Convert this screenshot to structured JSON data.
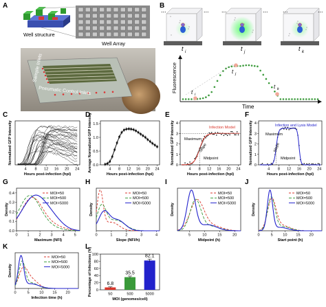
{
  "panel_letters": {
    "A": "A",
    "B": "B",
    "C": "C",
    "D": "D",
    "E": "E",
    "F": "F",
    "G": "G",
    "H": "H",
    "I": "I",
    "J": "J",
    "K": "K",
    "L": "L"
  },
  "panelA": {
    "well_structure": "Well structure",
    "well_array": "Well Array",
    "sample_inlets": "Sample Inlets",
    "pneumatic": "Pneumatic Control Inlets"
  },
  "panelB": {
    "ellipsis": "...",
    "t_i": "t",
    "t_j": "t",
    "t_k": "t",
    "sub_i": "i",
    "sub_j": "j",
    "sub_k": "k",
    "ylabel": "Fluorescence",
    "xlabel": "Time"
  },
  "colors": {
    "red": "#d9362b",
    "green": "#3a9a3a",
    "blue": "#2222cc",
    "black": "#111111",
    "gfp": "#2ecc40"
  },
  "chart_data": [
    {
      "panel": "C",
      "type": "line",
      "xlabel": "Hours post-infection (hpi)",
      "ylabel": "Normalized GFP Intensity",
      "x_ticks": [
        "4",
        "8",
        "12",
        "16",
        "20",
        "24"
      ]
    },
    {
      "panel": "D",
      "type": "line",
      "xlabel": "Hours post-infection (hpi)",
      "ylabel": "Average Normalized GFP Intensity",
      "x_ticks": [
        "4",
        "8",
        "12",
        "16",
        "20",
        "24"
      ],
      "y_ticks": [
        "0.0",
        "0.5",
        "1.0",
        "1.5"
      ],
      "x": [
        2,
        3,
        4,
        5,
        6,
        7,
        8,
        9,
        10,
        11,
        12,
        13,
        14,
        15,
        16,
        17,
        18,
        19,
        20,
        21,
        22,
        23,
        24
      ],
      "y": [
        0.02,
        0.05,
        0.12,
        0.3,
        0.55,
        0.8,
        1.02,
        1.18,
        1.27,
        1.3,
        1.31,
        1.3,
        1.28,
        1.24,
        1.18,
        1.12,
        1.06,
        1.0,
        0.92,
        0.85,
        0.78,
        0.72,
        0.66
      ]
    },
    {
      "panel": "E",
      "type": "line",
      "xlabel": "Hours post-infection (hpi)",
      "ylabel": "Normalized GFP Intensity",
      "x_ticks": [
        "4",
        "8",
        "12",
        "16",
        "20",
        "24"
      ],
      "y_ticks": [
        "0",
        "1",
        "2",
        "3",
        "4"
      ],
      "model_label": "Infection Model",
      "maximum_label": "Maximum",
      "slope_label": "Slope",
      "midpoint_label": "Midpoint"
    },
    {
      "panel": "F",
      "type": "line",
      "xlabel": "Hours post-infection (hpi)",
      "ylabel": "Normalized GFP Intensity",
      "x_ticks": [
        "4",
        "8",
        "12",
        "16",
        "20",
        "24"
      ],
      "y_ticks": [
        "0",
        "1",
        "2",
        "3",
        "4"
      ],
      "model_label": "Infection and Lysis Model",
      "maximum_label": "Maximum",
      "slope_label": "Slope",
      "midpoint_label": "Midpoint"
    },
    {
      "panel": "G",
      "type": "line",
      "xlabel": "Maximum (NFI)",
      "ylabel": "Density",
      "x_ticks": [
        "0",
        "1",
        "2",
        "3",
        "4",
        "5"
      ],
      "y_ticks": [
        "0.0",
        "0.1",
        "0.2",
        "0.3",
        "0.4"
      ],
      "legend": [
        "MOI=50",
        "MOI=500",
        "MOI=5000"
      ]
    },
    {
      "panel": "H",
      "type": "line",
      "xlabel": "Slope (NFI/h)",
      "ylabel": "Density",
      "x_ticks": [
        "0",
        "1",
        "2",
        "3",
        "4"
      ],
      "legend": [
        "MOI=50",
        "MOI=500",
        "MOI=5000"
      ]
    },
    {
      "panel": "I",
      "type": "line",
      "xlabel": "Midpoint (h)",
      "ylabel": "Density",
      "x_ticks": [
        "5",
        "10",
        "15",
        "20"
      ],
      "legend": [
        "MOI=50",
        "MOI=500",
        "MOI=5000"
      ]
    },
    {
      "panel": "J",
      "type": "line",
      "xlabel": "Start point (h)",
      "ylabel": "Density",
      "x_ticks": [
        "0",
        "5",
        "10",
        "15",
        "20"
      ],
      "legend": [
        "MOI=50",
        "MOI=500",
        "MOI=5000"
      ]
    },
    {
      "panel": "K",
      "type": "line",
      "xlabel": "Infection time (h)",
      "ylabel": "Density",
      "x_ticks": [
        "0",
        "5",
        "10",
        "15",
        "20"
      ],
      "legend": [
        "MOI=50",
        "MOI=500",
        "MOI=5000"
      ]
    },
    {
      "panel": "L",
      "type": "bar",
      "xlabel": "MOI (genomes/cell)",
      "ylabel": "Percentage of Infections (%)",
      "categories": [
        "50",
        "500",
        "5000"
      ],
      "values": [
        6.8,
        35.5,
        82.1
      ],
      "value_labels": [
        "6.8",
        "35.5",
        "82.1"
      ],
      "errors": [
        1.5,
        3,
        4
      ],
      "y_ticks": [
        "0",
        "20",
        "40",
        "60",
        "80",
        "100"
      ],
      "ylim": [
        0,
        100
      ],
      "colors": [
        "#d9362b",
        "#3a9a3a",
        "#2222cc"
      ]
    }
  ]
}
